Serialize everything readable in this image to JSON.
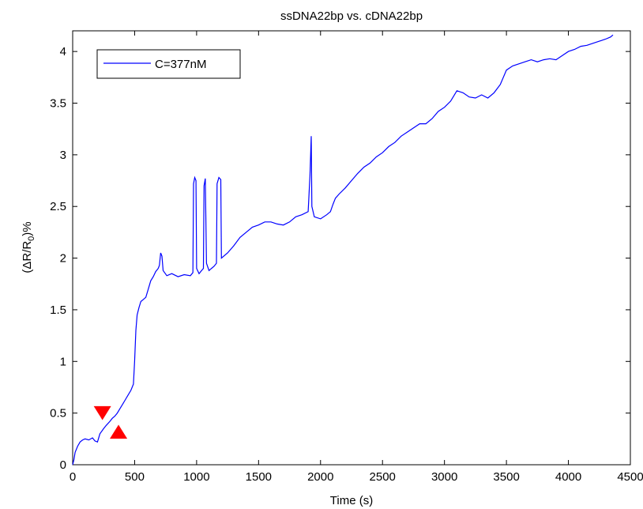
{
  "chart_data": {
    "type": "line",
    "title": "ssDNA22bp vs. cDNA22bp",
    "xlabel": "Time (s)",
    "ylabel": "(ΔR/R0)%",
    "ylabel_parts": {
      "prefix": "(ΔR/R",
      "sub": "0",
      "suffix": ")%"
    },
    "xlim": [
      0,
      4500
    ],
    "ylim": [
      0,
      4.2
    ],
    "xticks": [
      0,
      500,
      1000,
      1500,
      2000,
      2500,
      3000,
      3500,
      4000,
      4500
    ],
    "xtick_labels": [
      "0",
      "500",
      "1000",
      "1500",
      "2000",
      "2500",
      "3000",
      "3500",
      "4000",
      "4500"
    ],
    "yticks": [
      0,
      0.5,
      1,
      1.5,
      2,
      2.5,
      3,
      3.5,
      4
    ],
    "ytick_labels": [
      "0",
      "0.5",
      "1",
      "1.5",
      "2",
      "2.5",
      "3",
      "3.5",
      "4"
    ],
    "grid": false,
    "legend_position": "top-left",
    "series": [
      {
        "name": "C=377nM",
        "color": "#0000ff",
        "points": [
          [
            0,
            0.0
          ],
          [
            10,
            0.05
          ],
          [
            20,
            0.12
          ],
          [
            40,
            0.18
          ],
          [
            60,
            0.22
          ],
          [
            80,
            0.24
          ],
          [
            100,
            0.25
          ],
          [
            130,
            0.24
          ],
          [
            160,
            0.26
          ],
          [
            180,
            0.23
          ],
          [
            200,
            0.22
          ],
          [
            220,
            0.3
          ],
          [
            250,
            0.35
          ],
          [
            270,
            0.38
          ],
          [
            300,
            0.42
          ],
          [
            320,
            0.45
          ],
          [
            340,
            0.47
          ],
          [
            360,
            0.5
          ],
          [
            380,
            0.54
          ],
          [
            400,
            0.58
          ],
          [
            420,
            0.62
          ],
          [
            450,
            0.68
          ],
          [
            470,
            0.72
          ],
          [
            490,
            0.78
          ],
          [
            500,
            1.0
          ],
          [
            510,
            1.3
          ],
          [
            520,
            1.45
          ],
          [
            535,
            1.52
          ],
          [
            550,
            1.58
          ],
          [
            570,
            1.6
          ],
          [
            590,
            1.62
          ],
          [
            610,
            1.7
          ],
          [
            630,
            1.78
          ],
          [
            650,
            1.82
          ],
          [
            670,
            1.87
          ],
          [
            690,
            1.9
          ],
          [
            700,
            1.93
          ],
          [
            710,
            2.05
          ],
          [
            720,
            2.02
          ],
          [
            730,
            1.88
          ],
          [
            760,
            1.83
          ],
          [
            800,
            1.85
          ],
          [
            850,
            1.82
          ],
          [
            900,
            1.84
          ],
          [
            950,
            1.83
          ],
          [
            970,
            1.86
          ],
          [
            975,
            2.72
          ],
          [
            985,
            2.78
          ],
          [
            995,
            2.75
          ],
          [
            1000,
            1.9
          ],
          [
            1020,
            1.85
          ],
          [
            1040,
            1.88
          ],
          [
            1055,
            1.9
          ],
          [
            1060,
            2.7
          ],
          [
            1070,
            2.77
          ],
          [
            1080,
            1.95
          ],
          [
            1100,
            1.88
          ],
          [
            1120,
            1.9
          ],
          [
            1140,
            1.92
          ],
          [
            1160,
            1.95
          ],
          [
            1165,
            2.72
          ],
          [
            1180,
            2.78
          ],
          [
            1195,
            2.76
          ],
          [
            1200,
            2.0
          ],
          [
            1250,
            2.05
          ],
          [
            1300,
            2.12
          ],
          [
            1350,
            2.2
          ],
          [
            1400,
            2.25
          ],
          [
            1450,
            2.3
          ],
          [
            1500,
            2.32
          ],
          [
            1550,
            2.35
          ],
          [
            1600,
            2.35
          ],
          [
            1650,
            2.33
          ],
          [
            1700,
            2.32
          ],
          [
            1750,
            2.35
          ],
          [
            1800,
            2.4
          ],
          [
            1850,
            2.42
          ],
          [
            1900,
            2.45
          ],
          [
            1915,
            2.8
          ],
          [
            1925,
            3.18
          ],
          [
            1930,
            2.5
          ],
          [
            1950,
            2.4
          ],
          [
            2000,
            2.38
          ],
          [
            2050,
            2.42
          ],
          [
            2080,
            2.45
          ],
          [
            2100,
            2.52
          ],
          [
            2120,
            2.58
          ],
          [
            2150,
            2.62
          ],
          [
            2200,
            2.68
          ],
          [
            2250,
            2.75
          ],
          [
            2300,
            2.82
          ],
          [
            2350,
            2.88
          ],
          [
            2400,
            2.92
          ],
          [
            2450,
            2.98
          ],
          [
            2500,
            3.02
          ],
          [
            2550,
            3.08
          ],
          [
            2600,
            3.12
          ],
          [
            2650,
            3.18
          ],
          [
            2700,
            3.22
          ],
          [
            2750,
            3.26
          ],
          [
            2800,
            3.3
          ],
          [
            2850,
            3.3
          ],
          [
            2900,
            3.35
          ],
          [
            2950,
            3.42
          ],
          [
            3000,
            3.46
          ],
          [
            3050,
            3.52
          ],
          [
            3100,
            3.62
          ],
          [
            3150,
            3.6
          ],
          [
            3200,
            3.56
          ],
          [
            3250,
            3.55
          ],
          [
            3300,
            3.58
          ],
          [
            3350,
            3.55
          ],
          [
            3400,
            3.6
          ],
          [
            3450,
            3.68
          ],
          [
            3500,
            3.82
          ],
          [
            3550,
            3.86
          ],
          [
            3600,
            3.88
          ],
          [
            3650,
            3.9
          ],
          [
            3700,
            3.92
          ],
          [
            3750,
            3.9
          ],
          [
            3800,
            3.92
          ],
          [
            3850,
            3.93
          ],
          [
            3900,
            3.92
          ],
          [
            3950,
            3.96
          ],
          [
            4000,
            4.0
          ],
          [
            4050,
            4.02
          ],
          [
            4100,
            4.05
          ],
          [
            4150,
            4.06
          ],
          [
            4200,
            4.08
          ],
          [
            4250,
            4.1
          ],
          [
            4300,
            4.12
          ],
          [
            4340,
            4.14
          ],
          [
            4360,
            4.16
          ]
        ]
      }
    ],
    "markers": [
      {
        "shape": "triangle-down",
        "x": 240,
        "y": 0.5,
        "color": "#ff0000"
      },
      {
        "shape": "triangle-up",
        "x": 370,
        "y": 0.32,
        "color": "#ff0000"
      }
    ]
  }
}
